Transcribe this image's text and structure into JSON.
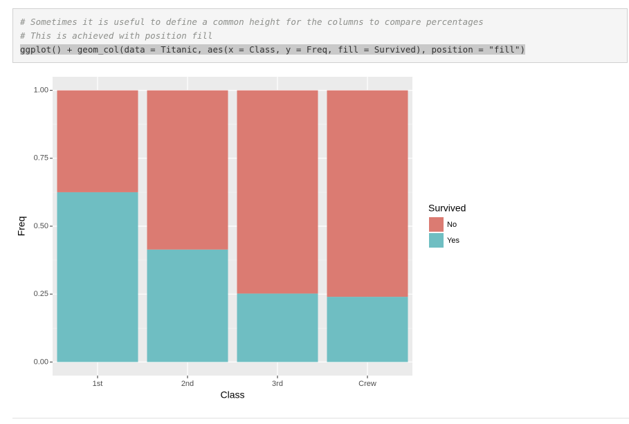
{
  "code": {
    "lines": [
      "# Sometimes it is useful to define a common height for the columns to compare percentages",
      "# This is achieved with position fill",
      "ggplot() + geom_col(data = Titanic, aes(x = Class, y = Freq, fill = Survived), position = \"fill\")"
    ]
  },
  "chart_data": {
    "type": "bar",
    "stacked": true,
    "x_label": "Class",
    "y_label": "Freq",
    "legend_title": "Survived",
    "categories": [
      "1st",
      "2nd",
      "3rd",
      "Crew"
    ],
    "series": [
      {
        "name": "No",
        "color": "#db7b72",
        "values": [
          0.375,
          0.586,
          0.748,
          0.76
        ]
      },
      {
        "name": "Yes",
        "color": "#6fbec2",
        "values": [
          0.625,
          0.414,
          0.252,
          0.24
        ]
      }
    ],
    "ylim": [
      -0.05,
      1.05
    ],
    "yticks": [
      {
        "value": 0,
        "label": "0.00"
      },
      {
        "value": 0.25,
        "label": "0.25"
      },
      {
        "value": 0.5,
        "label": "0.50"
      },
      {
        "value": 0.75,
        "label": "0.75"
      },
      {
        "value": 1,
        "label": "1.00"
      }
    ],
    "grid": true,
    "legend": "right"
  }
}
